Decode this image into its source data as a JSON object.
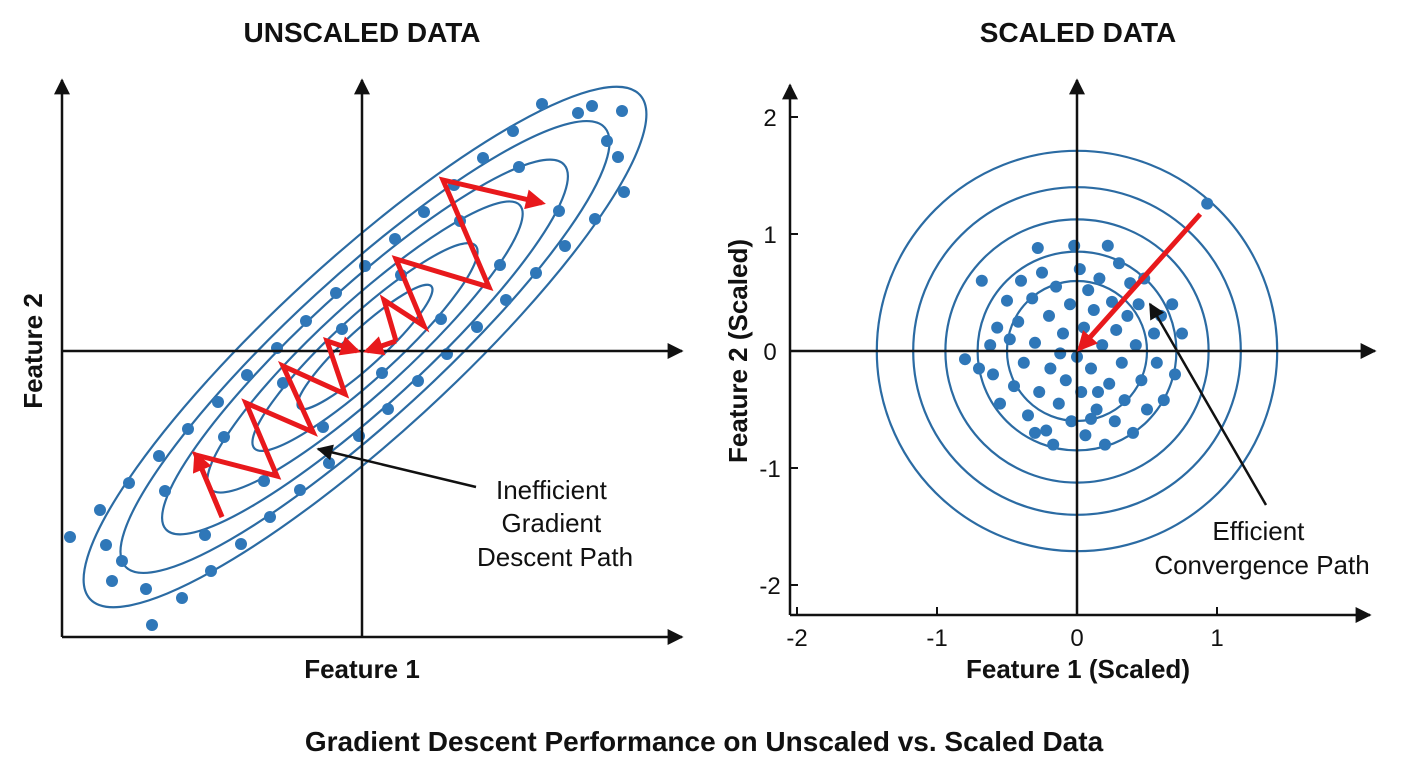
{
  "caption": "Gradient Descent Performance on Unscaled vs. Scaled Data",
  "colors": {
    "points": "#2f77b8",
    "contours": "#2b6ba3",
    "path": "#e8191c",
    "axes": "#111111"
  },
  "chart_data": [
    {
      "type": "scatter",
      "title": "UNSCALED DATA",
      "xlabel": "Feature 1",
      "ylabel": "Feature 2",
      "ticks_shown": false,
      "grid": false,
      "contours": "concentric rotated ellipses",
      "annotation": {
        "lines": [
          "Inefficient",
          "Gradient",
          "Descent Path"
        ]
      },
      "gradient_path": {
        "segments": [
          [
            [
              -1.4,
              -1.66
            ],
            [
              -1.66,
              -1.04
            ],
            [
              -0.85,
              -1.25
            ],
            [
              -1.16,
              -0.52
            ],
            [
              -0.49,
              -0.81
            ],
            [
              -0.79,
              -0.15
            ],
            [
              -0.17,
              -0.43
            ],
            [
              -0.35,
              0.1
            ],
            [
              -0.05,
              0.0
            ]
          ],
          [
            [
              0.34,
              0.1
            ],
            [
              0.22,
              0.51
            ],
            [
              0.62,
              0.25
            ],
            [
              0.34,
              0.92
            ],
            [
              1.27,
              0.64
            ],
            [
              0.81,
              1.71
            ],
            [
              1.8,
              1.48
            ]
          ],
          [
            [
              0.34,
              0.1
            ],
            [
              0.05,
              0.0
            ]
          ]
        ]
      },
      "points": [
        [
          -2.92,
          -1.86
        ],
        [
          -2.62,
          -1.59
        ],
        [
          -2.33,
          -1.32
        ],
        [
          -2.03,
          -1.05
        ],
        [
          -1.74,
          -0.78
        ],
        [
          -1.44,
          -0.51
        ],
        [
          -1.15,
          -0.24
        ],
        [
          -0.85,
          0.03
        ],
        [
          -0.56,
          0.3
        ],
        [
          -0.26,
          0.58
        ],
        [
          0.03,
          0.85
        ],
        [
          0.33,
          1.12
        ],
        [
          0.62,
          1.39
        ],
        [
          0.92,
          1.66
        ],
        [
          1.21,
          1.93
        ],
        [
          1.51,
          2.2
        ],
        [
          1.8,
          2.47
        ],
        [
          -2.1,
          -2.74
        ],
        [
          -1.8,
          -2.47
        ],
        [
          -1.51,
          -2.2
        ],
        [
          -1.21,
          -1.93
        ],
        [
          -0.92,
          -1.66
        ],
        [
          -0.62,
          -1.39
        ],
        [
          -0.33,
          -1.12
        ],
        [
          -0.03,
          -0.85
        ],
        [
          0.26,
          -0.58
        ],
        [
          0.56,
          -0.3
        ],
        [
          0.85,
          -0.03
        ],
        [
          1.15,
          0.24
        ],
        [
          1.44,
          0.51
        ],
        [
          1.74,
          0.78
        ],
        [
          2.03,
          1.05
        ],
        [
          2.33,
          1.32
        ],
        [
          2.62,
          1.59
        ],
        [
          -2.56,
          -1.94
        ],
        [
          -1.97,
          -1.4
        ],
        [
          -1.38,
          -0.86
        ],
        [
          -0.79,
          -0.32
        ],
        [
          -0.2,
          0.22
        ],
        [
          0.39,
          0.76
        ],
        [
          0.98,
          1.3
        ],
        [
          1.57,
          1.84
        ],
        [
          2.16,
          2.38
        ],
        [
          -2.16,
          -2.38
        ],
        [
          -1.57,
          -1.84
        ],
        [
          -0.98,
          -1.3
        ],
        [
          -0.39,
          -0.76
        ],
        [
          0.2,
          -0.22
        ],
        [
          0.79,
          0.32
        ],
        [
          1.38,
          0.86
        ],
        [
          1.97,
          1.4
        ],
        [
          2.56,
          1.94
        ],
        [
          -2.5,
          -2.3
        ],
        [
          2.6,
          2.4
        ],
        [
          2.3,
          2.45
        ],
        [
          -2.4,
          -2.1
        ],
        [
          2.45,
          2.1
        ]
      ]
    },
    {
      "type": "scatter",
      "title": "SCALED DATA",
      "xlabel": "Feature 1 (Scaled)",
      "ylabel": "Feature 2 (Scaled)",
      "xticks": [
        -2,
        -1,
        0,
        1
      ],
      "yticks": [
        2,
        1,
        0,
        -1,
        -2
      ],
      "grid": false,
      "contours": "concentric circles",
      "contour_radii": [
        1.43,
        1.17,
        0.94,
        0.71,
        0.5
      ],
      "annotation": {
        "lines": [
          "Efficient",
          "Convergence Path"
        ]
      },
      "gradient_path": {
        "segments": [
          [
            [
              0.88,
              1.17
            ],
            [
              0.02,
              0.02
            ]
          ]
        ]
      },
      "points": [
        [
          -0.8,
          -0.07
        ],
        [
          -0.7,
          -0.15
        ],
        [
          -0.68,
          0.6
        ],
        [
          -0.57,
          0.2
        ],
        [
          -0.55,
          -0.45
        ],
        [
          -0.5,
          0.43
        ],
        [
          -0.48,
          0.1
        ],
        [
          -0.45,
          -0.3
        ],
        [
          -0.42,
          0.25
        ],
        [
          -0.4,
          0.6
        ],
        [
          -0.38,
          -0.1
        ],
        [
          -0.35,
          -0.55
        ],
        [
          -0.32,
          0.45
        ],
        [
          -0.3,
          0.07
        ],
        [
          -0.28,
          0.88
        ],
        [
          -0.27,
          -0.35
        ],
        [
          -0.25,
          0.67
        ],
        [
          -0.22,
          -0.68
        ],
        [
          -0.2,
          0.3
        ],
        [
          -0.19,
          -0.15
        ],
        [
          -0.17,
          -0.8
        ],
        [
          -0.15,
          0.55
        ],
        [
          -0.13,
          -0.45
        ],
        [
          -0.1,
          0.15
        ],
        [
          -0.08,
          -0.25
        ],
        [
          -0.05,
          0.4
        ],
        [
          -0.04,
          -0.6
        ],
        [
          -0.02,
          0.9
        ],
        [
          0.0,
          -0.05
        ],
        [
          0.02,
          0.7
        ],
        [
          0.03,
          -0.35
        ],
        [
          0.05,
          0.2
        ],
        [
          0.06,
          -0.72
        ],
        [
          0.08,
          0.52
        ],
        [
          0.1,
          -0.15
        ],
        [
          0.12,
          0.35
        ],
        [
          0.14,
          -0.5
        ],
        [
          0.16,
          0.62
        ],
        [
          0.18,
          0.05
        ],
        [
          0.2,
          -0.8
        ],
        [
          0.22,
          0.9
        ],
        [
          0.23,
          -0.28
        ],
        [
          0.25,
          0.42
        ],
        [
          0.27,
          -0.6
        ],
        [
          0.28,
          0.18
        ],
        [
          0.3,
          0.75
        ],
        [
          0.32,
          -0.1
        ],
        [
          0.34,
          -0.42
        ],
        [
          0.36,
          0.3
        ],
        [
          0.38,
          0.58
        ],
        [
          0.4,
          -0.7
        ],
        [
          0.42,
          0.05
        ],
        [
          0.44,
          0.4
        ],
        [
          0.46,
          -0.25
        ],
        [
          0.48,
          0.62
        ],
        [
          0.5,
          -0.5
        ],
        [
          0.55,
          0.15
        ],
        [
          0.57,
          -0.1
        ],
        [
          0.6,
          0.3
        ],
        [
          0.62,
          -0.42
        ],
        [
          0.68,
          0.4
        ],
        [
          0.7,
          -0.2
        ],
        [
          0.75,
          0.15
        ],
        [
          0.93,
          1.26
        ],
        [
          -0.6,
          -0.2
        ],
        [
          -0.62,
          0.05
        ],
        [
          -0.3,
          -0.7
        ],
        [
          0.1,
          -0.58
        ],
        [
          -0.12,
          -0.02
        ],
        [
          0.15,
          -0.35
        ]
      ]
    }
  ]
}
